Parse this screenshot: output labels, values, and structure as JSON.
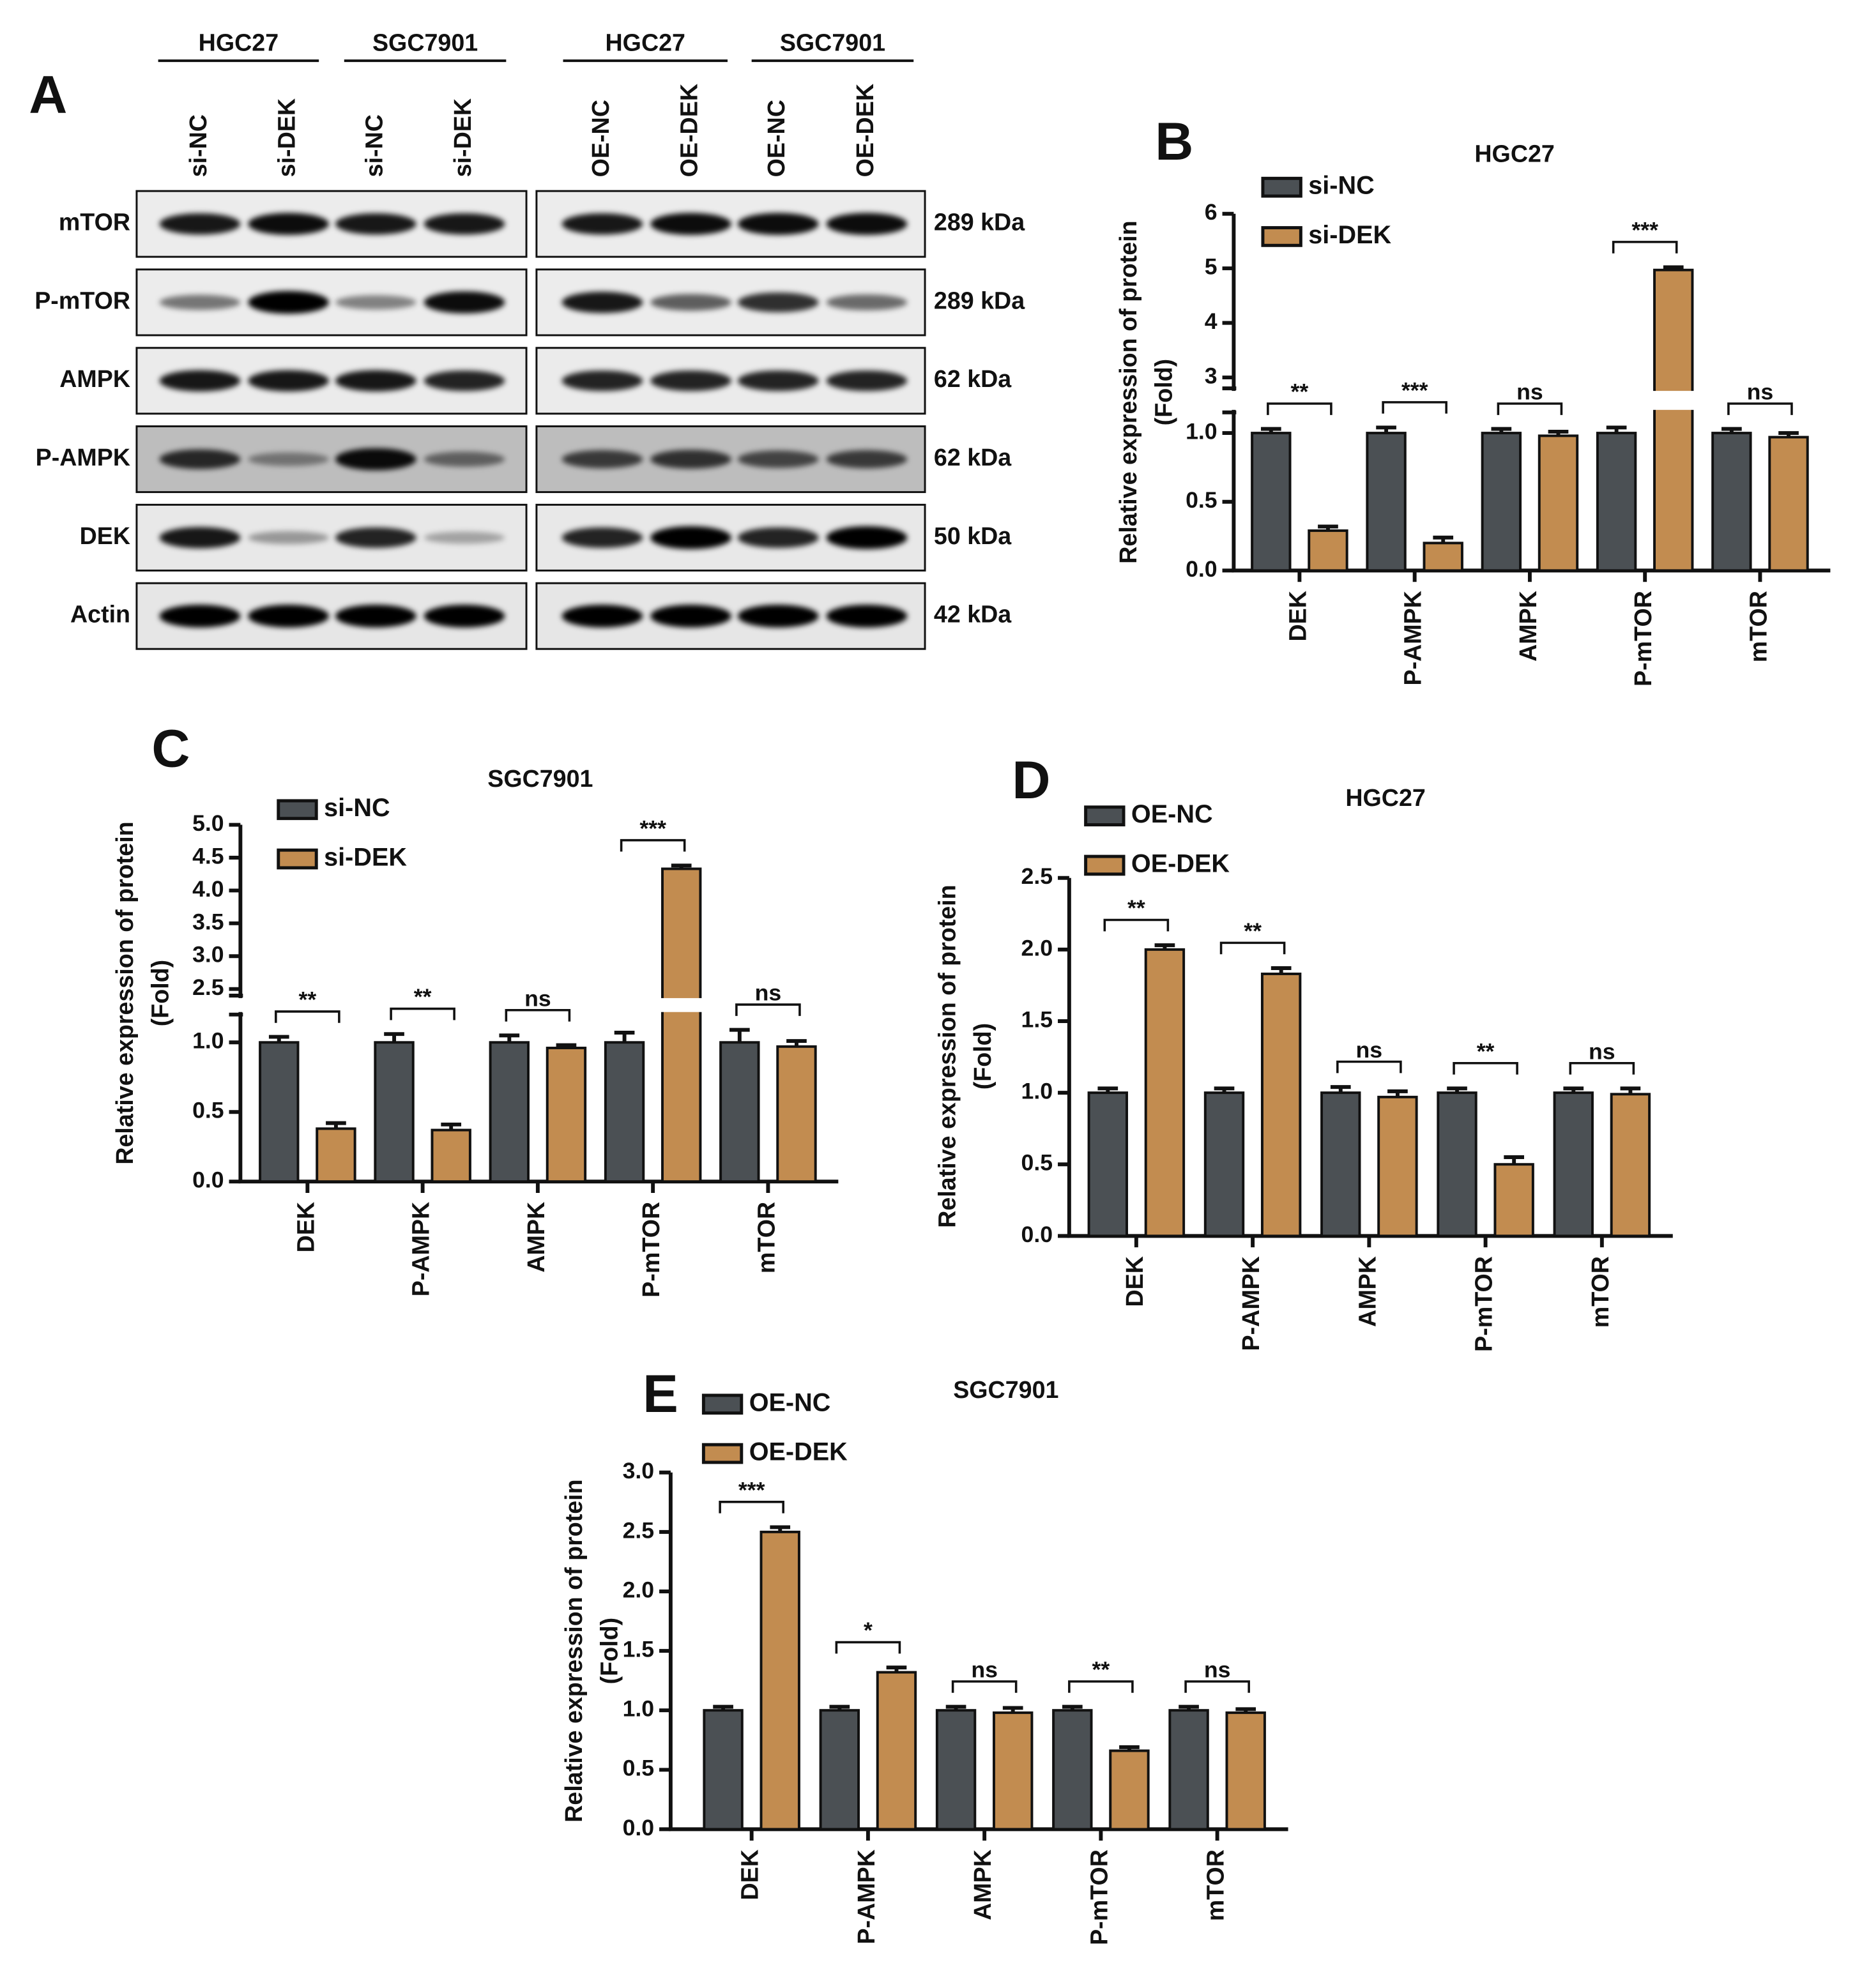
{
  "western_blot": {
    "panel_label": "A",
    "groups": [
      "HGC27",
      "SGC7901",
      "HGC27",
      "SGC7901"
    ],
    "lanes": [
      "si-NC",
      "si-DEK",
      "si-NC",
      "si-DEK",
      "OE-NC",
      "OE-DEK",
      "OE-NC",
      "OE-DEK"
    ],
    "rows": [
      {
        "protein": "mTOR",
        "size": "289 kDa"
      },
      {
        "protein": "P-mTOR",
        "size": "289 kDa"
      },
      {
        "protein": "AMPK",
        "size": "62 kDa"
      },
      {
        "protein": "P-AMPK",
        "size": "62 kDa"
      },
      {
        "protein": "DEK",
        "size": "50 kDa"
      },
      {
        "protein": "Actin",
        "size": "42 kDa"
      }
    ]
  },
  "chart_data": [
    {
      "type": "bar",
      "panel_label": "B",
      "title": "HGC27",
      "ylabel": [
        "Relative expression of protein",
        "(Fold)"
      ],
      "categories": [
        "DEK",
        "P-AMPK",
        "AMPK",
        "P-mTOR",
        "mTOR"
      ],
      "series": [
        {
          "name": "si-NC",
          "color": "#4b5054",
          "values": [
            1,
            1,
            1,
            1,
            1
          ],
          "errors": [
            0.03,
            0.04,
            0.03,
            0.04,
            0.03
          ]
        },
        {
          "name": "si-DEK",
          "color": "#c28c50",
          "values": [
            0.29,
            0.2,
            0.98,
            4.97,
            0.97
          ],
          "errors": [
            0.03,
            0.04,
            0.03,
            0.05,
            0.03
          ]
        }
      ],
      "significance": [
        "**",
        "***",
        "ns",
        "***",
        "ns"
      ],
      "ylim": [
        0,
        6
      ],
      "axis_break": [
        1.15,
        2.8
      ],
      "yticks": [
        {
          "value": 0,
          "label": "0.0"
        },
        0.5,
        {
          "value": 1,
          "label": "1.0"
        },
        3,
        4,
        5,
        6
      ]
    },
    {
      "type": "bar",
      "panel_label": "C",
      "title": "SGC7901",
      "ylabel": [
        "Relative expression of protein",
        "(Fold)"
      ],
      "categories": [
        "DEK",
        "P-AMPK",
        "AMPK",
        "P-mTOR",
        "mTOR"
      ],
      "series": [
        {
          "name": "si-NC",
          "color": "#4b5054",
          "values": [
            1,
            1,
            1,
            1,
            1
          ],
          "errors": [
            0.04,
            0.06,
            0.05,
            0.07,
            0.09
          ]
        },
        {
          "name": "si-DEK",
          "color": "#c28c50",
          "values": [
            0.38,
            0.37,
            0.96,
            4.33,
            0.97
          ],
          "errors": [
            0.04,
            0.04,
            0.02,
            0.05,
            0.04
          ]
        }
      ],
      "significance": [
        "**",
        "**",
        "ns",
        "***",
        "ns"
      ],
      "ylim": [
        0,
        5
      ],
      "axis_break": [
        1.2,
        2.4
      ],
      "yticks": [
        {
          "value": 0,
          "label": "0.0"
        },
        0.5,
        {
          "value": 1,
          "label": "1.0"
        },
        2.5,
        {
          "value": 3,
          "label": "3.0"
        },
        3.5,
        {
          "value": 4,
          "label": "4.0"
        },
        4.5,
        {
          "value": 5,
          "label": "5.0"
        }
      ]
    },
    {
      "type": "bar",
      "panel_label": "D",
      "title": "HGC27",
      "ylabel": [
        "Relative expression of protein",
        "(Fold)"
      ],
      "categories": [
        "DEK",
        "P-AMPK",
        "AMPK",
        "P-mTOR",
        "mTOR"
      ],
      "series": [
        {
          "name": "OE-NC",
          "color": "#4b5054",
          "values": [
            1,
            1,
            1,
            1,
            1
          ],
          "errors": [
            0.03,
            0.03,
            0.04,
            0.03,
            0.03
          ]
        },
        {
          "name": "OE-DEK",
          "color": "#c28c50",
          "values": [
            2.0,
            1.83,
            0.97,
            0.5,
            0.99
          ],
          "errors": [
            0.03,
            0.04,
            0.04,
            0.05,
            0.04
          ]
        }
      ],
      "significance": [
        "**",
        "**",
        "ns",
        "**",
        "ns"
      ],
      "ylim": [
        0,
        2.5
      ],
      "yticks": [
        {
          "value": 0,
          "label": "0.0"
        },
        0.5,
        {
          "value": 1,
          "label": "1.0"
        },
        1.5,
        {
          "value": 2,
          "label": "2.0"
        },
        2.5
      ]
    },
    {
      "type": "bar",
      "panel_label": "E",
      "title": "SGC7901",
      "ylabel": [
        "Relative expression of protein",
        "(Fold)"
      ],
      "categories": [
        "DEK",
        "P-AMPK",
        "AMPK",
        "P-mTOR",
        "mTOR"
      ],
      "series": [
        {
          "name": "OE-NC",
          "color": "#4b5054",
          "values": [
            1,
            1,
            1,
            1,
            1
          ],
          "errors": [
            0.03,
            0.03,
            0.03,
            0.03,
            0.03
          ]
        },
        {
          "name": "OE-DEK",
          "color": "#c28c50",
          "values": [
            2.5,
            1.32,
            0.98,
            0.66,
            0.98
          ],
          "errors": [
            0.04,
            0.04,
            0.04,
            0.03,
            0.03
          ]
        }
      ],
      "significance": [
        "***",
        "*",
        "ns",
        "**",
        "ns"
      ],
      "ylim": [
        0,
        3
      ],
      "yticks": [
        {
          "value": 0,
          "label": "0.0"
        },
        0.5,
        {
          "value": 1,
          "label": "1.0"
        },
        1.5,
        {
          "value": 2,
          "label": "2.0"
        },
        2.5,
        {
          "value": 3,
          "label": "3.0"
        }
      ]
    }
  ]
}
